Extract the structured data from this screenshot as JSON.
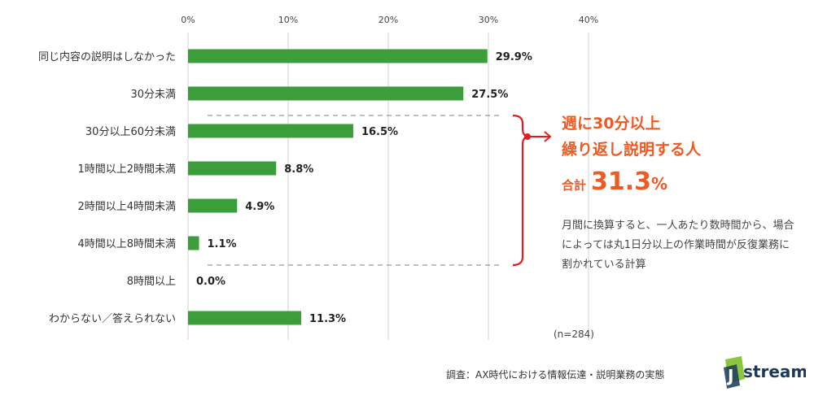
{
  "chart_data": {
    "type": "bar",
    "orientation": "horizontal",
    "categories": [
      "同じ内容の説明はしなかった",
      "30分未満",
      "30分以上60分未満",
      "1時間以上2時間未満",
      "2時間以上4時間未満",
      "4時間以上8時間未満",
      "8時間以上",
      "わからない／答えられない"
    ],
    "values": [
      29.9,
      27.5,
      16.5,
      8.8,
      4.9,
      1.1,
      0.0,
      11.3
    ],
    "value_labels": [
      "29.9%",
      "27.5%",
      "16.5%",
      "8.8%",
      "4.9%",
      "1.1%",
      "0.0%",
      "11.3%"
    ],
    "xlim": [
      0,
      40
    ],
    "xticks": [
      "0%",
      "10%",
      "20%",
      "30%",
      "40%"
    ],
    "grid": true,
    "bar_color": "#3b9e3b"
  },
  "callout": {
    "line1": "週に30分以上",
    "line2": "繰り返し説明する人",
    "total_label": "合計",
    "total_value": "31.3",
    "total_unit": "%",
    "color": "#f05a22",
    "bracket_color": "#e02020"
  },
  "note": "月間に換算すると、一人あたり数時間から、場合によっては丸1日分以上の作業時間が反復業務に割かれている計算",
  "sample_size": "(n=284)",
  "source": "調査：AX時代における情報伝達・説明業務の実態",
  "logo": {
    "text": "stream",
    "initial": "J"
  }
}
